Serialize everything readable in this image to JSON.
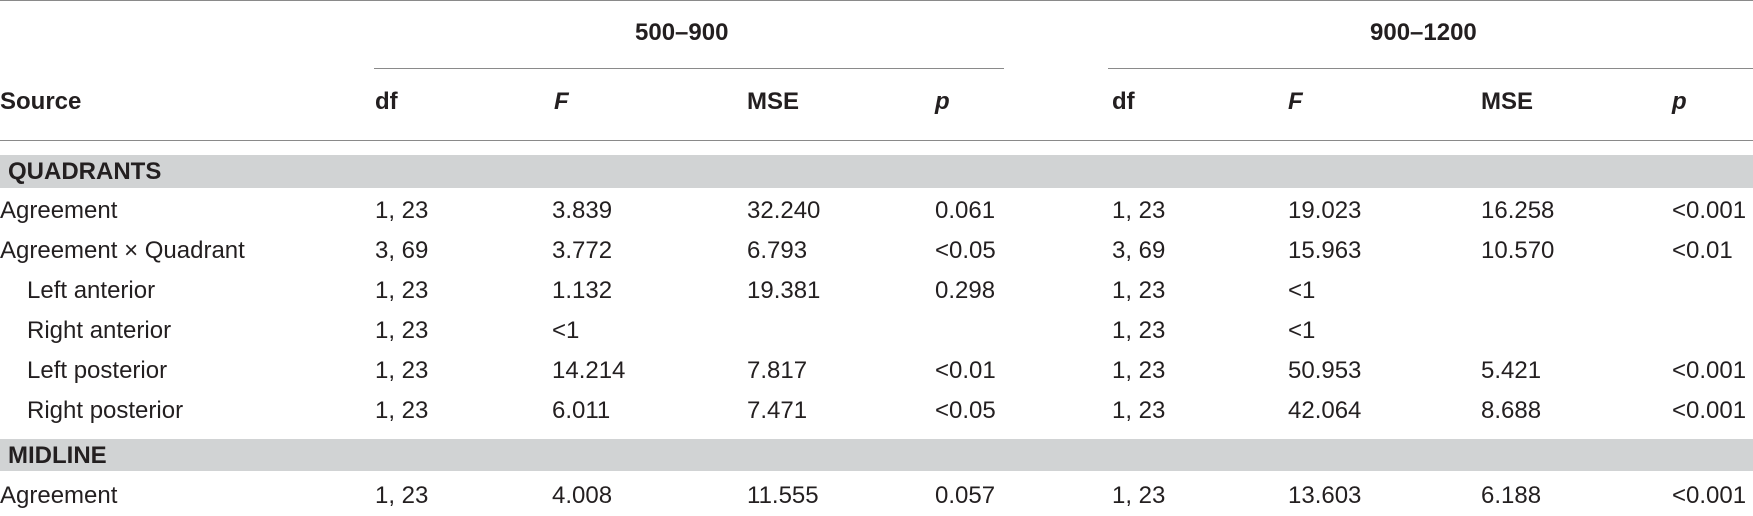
{
  "header": {
    "group1": "500–900",
    "group2": "900–1200",
    "source": "Source",
    "df": "df",
    "F": "F",
    "MSE": "MSE",
    "p": "p"
  },
  "sections": [
    {
      "title": "QUADRANTS",
      "rows": [
        {
          "source": "Agreement",
          "indent": false,
          "df1": "1, 23",
          "F1": "3.839",
          "MSE1": "32.240",
          "p1": "0.061",
          "df2": "1, 23",
          "F2": "19.023",
          "MSE2": "16.258",
          "p2": "<0.001"
        },
        {
          "source": "Agreement × Quadrant",
          "indent": false,
          "df1": "3, 69",
          "F1": "3.772",
          "MSE1": "6.793",
          "p1": "<0.05",
          "df2": "3, 69",
          "F2": "15.963",
          "MSE2": "10.570",
          "p2": "<0.01"
        },
        {
          "source": "Left anterior",
          "indent": true,
          "df1": "1, 23",
          "F1": "1.132",
          "MSE1": "19.381",
          "p1": "0.298",
          "df2": "1, 23",
          "F2": "<1",
          "MSE2": "",
          "p2": ""
        },
        {
          "source": "Right anterior",
          "indent": true,
          "df1": "1, 23",
          "F1": "<1",
          "MSE1": "",
          "p1": "",
          "df2": "1, 23",
          "F2": "<1",
          "MSE2": "",
          "p2": ""
        },
        {
          "source": "Left posterior",
          "indent": true,
          "df1": "1, 23",
          "F1": "14.214",
          "MSE1": "7.817",
          "p1": "<0.01",
          "df2": "1, 23",
          "F2": "50.953",
          "MSE2": "5.421",
          "p2": "<0.001"
        },
        {
          "source": "Right posterior",
          "indent": true,
          "df1": "1, 23",
          "F1": "6.011",
          "MSE1": "7.471",
          "p1": "<0.05",
          "df2": "1, 23",
          "F2": "42.064",
          "MSE2": "8.688",
          "p2": "<0.001"
        }
      ]
    },
    {
      "title": "MIDLINE",
      "rows": [
        {
          "source": "Agreement",
          "indent": false,
          "df1": "1, 23",
          "F1": "4.008",
          "MSE1": "11.555",
          "p1": "0.057",
          "df2": "1, 23",
          "F2": "13.603",
          "MSE2": "6.188",
          "p2": "<0.001"
        }
      ]
    }
  ]
}
